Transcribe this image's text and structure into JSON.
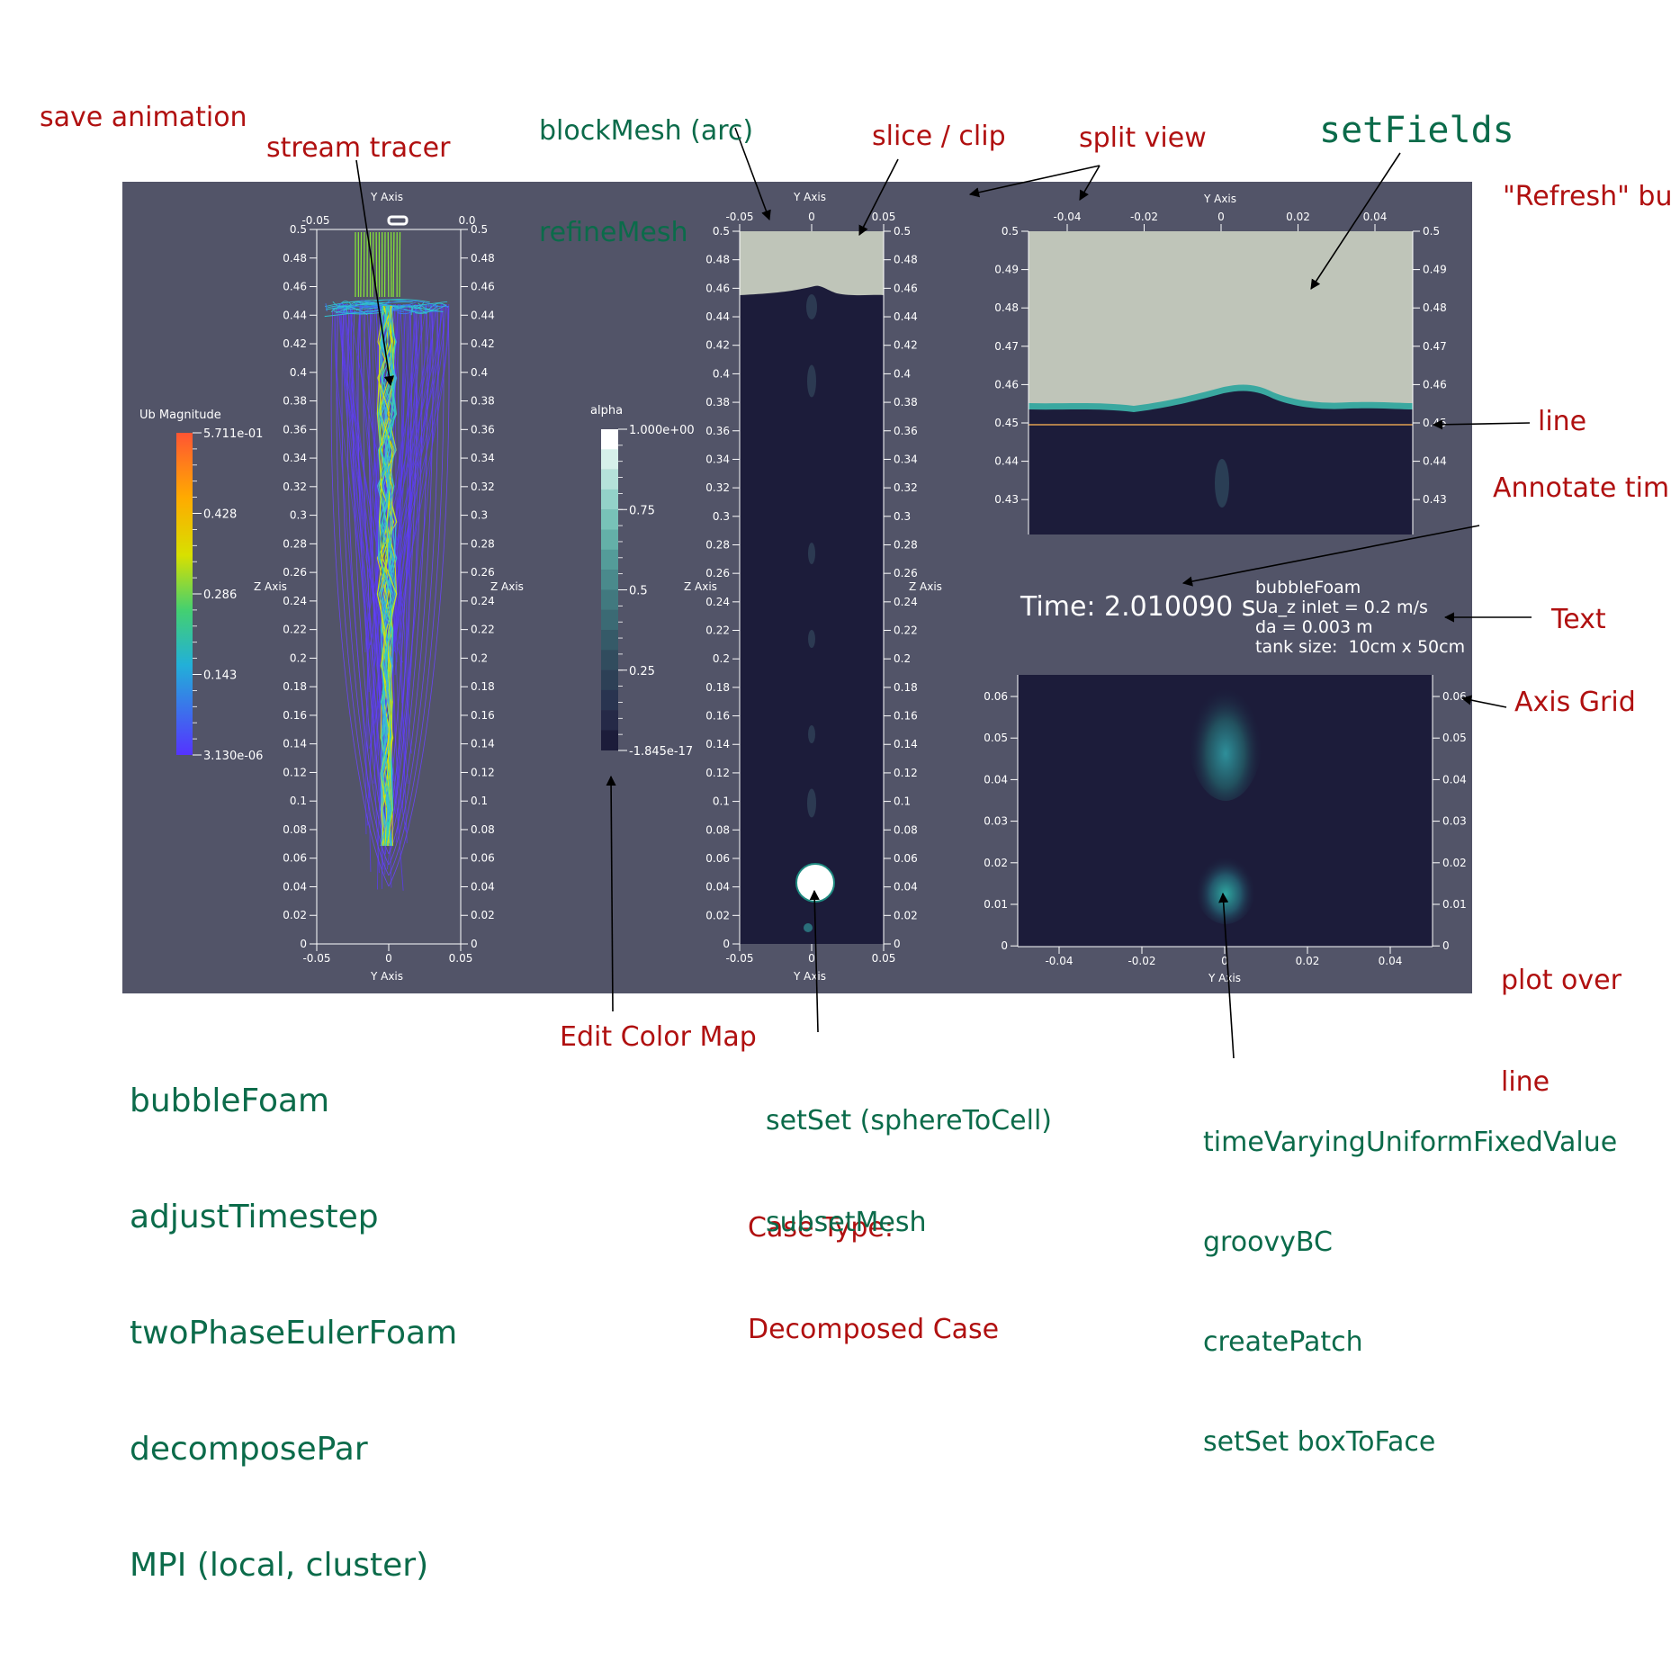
{
  "annotations_red": {
    "save_animation": "save animation",
    "stream_tracer": "stream tracer",
    "slice_clip": "slice / clip",
    "split_view": "split view",
    "refresh_button": "\"Refresh\" bu",
    "line": "line",
    "annotate_time": "Annotate tim",
    "text": "Text",
    "axis_grid": "Axis Grid",
    "plot_over_line_1": "plot over",
    "plot_over_line_2": "line",
    "edit_color_map": "Edit Color Map",
    "case_type_1": "Case Type:",
    "case_type_2": "Decomposed Case"
  },
  "annotations_green": {
    "blockmesh": "blockMesh (arc)",
    "refinemesh": "refineMesh",
    "setfields": "setFields",
    "bubblefoam": "bubbleFoam",
    "adjusttimestep": "adjustTimestep",
    "twophaseeulerfoam": "twoPhaseEulerFoam",
    "decomposepar": "decomposePar",
    "mpi": "MPI (local, cluster)",
    "setset_sphere": "setSet (sphereToCell)",
    "subsetmesh": "subsetMesh",
    "timevarying": "timeVaryingUniformFixedValue",
    "groovybc": "groovyBC",
    "createpatch": "createPatch",
    "setset_box": "setSet boxToFace"
  },
  "views": {
    "left": {
      "axis_top": "Y Axis",
      "axis_bottom": "Y Axis",
      "axis_side_left": "Z Axis",
      "axis_side_right": "Z Axis",
      "x_ticks": [
        "-0.05",
        "0",
        "0.05"
      ],
      "top_ticks": [
        "-0.05",
        "0.0"
      ],
      "y_ticks": [
        "0.5",
        "0.48",
        "0.46",
        "0.44",
        "0.42",
        "0.4",
        "0.38",
        "0.36",
        "0.34",
        "0.32",
        "0.3",
        "0.28",
        "0.26",
        "0.24",
        "0.22",
        "0.2",
        "0.18",
        "0.16",
        "0.14",
        "0.12",
        "0.1",
        "0.08",
        "0.06",
        "0.04",
        "0.02",
        "0"
      ],
      "colorbar_title": "Ub Magnitude",
      "colorbar_labels": [
        "5.711e-01",
        "0.428",
        "0.286",
        "0.143",
        "3.130e-06"
      ]
    },
    "middle": {
      "axis_top": "Y Axis",
      "axis_bottom": "Y Axis",
      "axis_side_left": "Z Axis",
      "axis_side_right": "Z Axis",
      "x_ticks": [
        "-0.05",
        "0",
        "0.05"
      ],
      "y_ticks": [
        "0.5",
        "0.48",
        "0.46",
        "0.44",
        "0.42",
        "0.4",
        "0.38",
        "0.36",
        "0.34",
        "0.32",
        "0.3",
        "0.28",
        "0.26",
        "0.24",
        "0.22",
        "0.2",
        "0.18",
        "0.16",
        "0.14",
        "0.12",
        "0.1",
        "0.08",
        "0.06",
        "0.04",
        "0.02",
        "0"
      ],
      "colorbar_title": "alpha",
      "colorbar_labels": [
        "1.000e+00",
        "0.75",
        "0.5",
        "0.25",
        "-1.845e-17"
      ]
    },
    "top_right": {
      "axis_top": "Y Axis",
      "x_ticks": [
        "-0.04",
        "-0.02",
        "0",
        "0.02",
        "0.04"
      ],
      "y_ticks": [
        "0.5",
        "0.49",
        "0.48",
        "0.47",
        "0.46",
        "0.45",
        "0.44",
        "0.43"
      ]
    },
    "info": {
      "time_text": "Time: 2.010090 s",
      "text_lines": [
        "bubbleFoam",
        "Ua_z inlet = 0.2 m/s",
        "da = 0.003 m",
        "tank size:  10cm x 50cm"
      ]
    },
    "bottom_right": {
      "axis_bottom": "Y Axis",
      "x_ticks": [
        "-0.04",
        "-0.02",
        "0",
        "0.02",
        "0.04"
      ],
      "y_ticks": [
        "0.06",
        "0.05",
        "0.04",
        "0.03",
        "0.02",
        "0.01",
        "0"
      ]
    }
  },
  "colors": {
    "panel_bg": "#525468",
    "fluid_dark": "#1c1c3a",
    "fluid_air": "#bfc5b9",
    "annotation_red": "#b01010",
    "annotation_green": "#0b6b4a"
  }
}
